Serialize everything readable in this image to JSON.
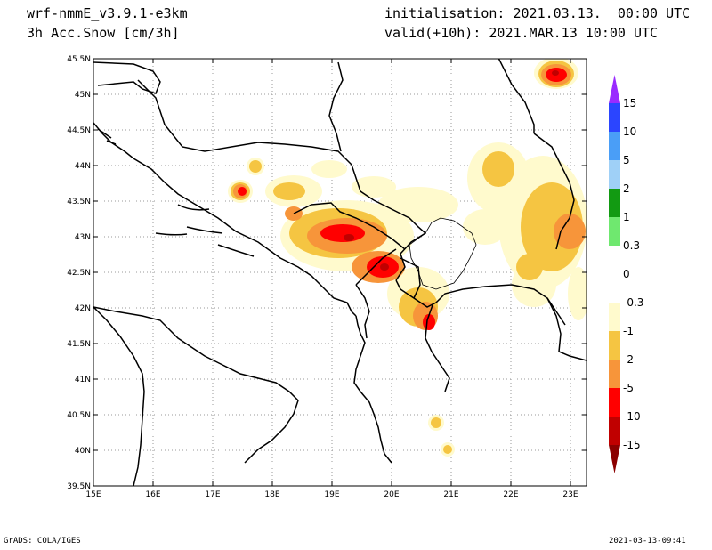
{
  "header": {
    "model": "wrf-nmmE_v3.9.1-e3km",
    "field": "3h Acc.Snow [cm/3h]",
    "init": "initialisation: 2021.03.13.  00:00 UTC",
    "valid": "valid(+10h): 2021.MAR.13 10:00 UTC"
  },
  "footer": {
    "left": "GrADS: COLA/IGES",
    "right": "2021-03-13-09:41"
  },
  "map": {
    "lat_labels": [
      "45.5N",
      "45N",
      "44.5N",
      "44N",
      "43.5N",
      "43N",
      "42.5N",
      "42N",
      "41.5N",
      "41N",
      "40.5N",
      "40N",
      "39.5N"
    ],
    "lon_labels": [
      "15E",
      "16E",
      "17E",
      "18E",
      "19E",
      "20E",
      "21E",
      "22E",
      "23E"
    ]
  },
  "colorbar": {
    "labels": [
      "15",
      "10",
      "5",
      "2",
      "1",
      "0.3",
      "0",
      "-0.3",
      "-1",
      "-2",
      "-5",
      "-10",
      "-15"
    ],
    "colors": [
      "#9a2bff",
      "#2b45ff",
      "#4a9ef7",
      "#9fd0f7",
      "#129a12",
      "#6fe86f",
      "#ffffff",
      "#ffffff",
      "#fffacd",
      "#f5c542",
      "#f7953a",
      "#ff0000",
      "#c00000",
      "#8b0000"
    ]
  }
}
